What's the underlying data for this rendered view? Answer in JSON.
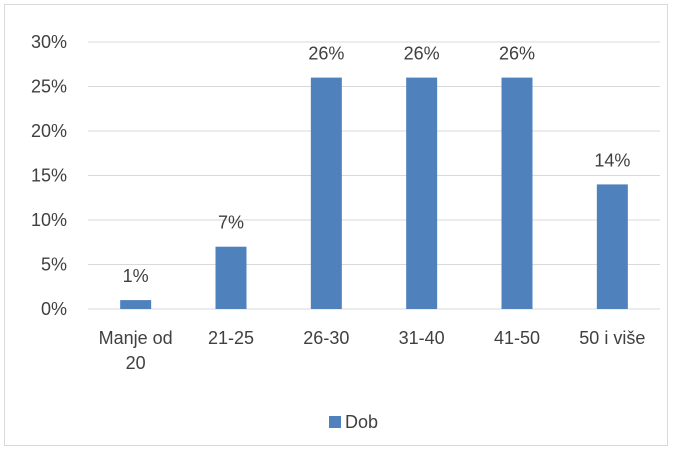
{
  "chart_data": {
    "type": "bar",
    "title": "",
    "xlabel": "",
    "ylabel": "",
    "categories": [
      [
        "Manje od",
        "20"
      ],
      [
        "21-25"
      ],
      [
        "26-30"
      ],
      [
        "31-40"
      ],
      [
        "41-50"
      ],
      [
        "50 i više"
      ]
    ],
    "series": [
      {
        "name": "Dob",
        "values": [
          1,
          7,
          26,
          26,
          26,
          14
        ],
        "color": "#4f81bd"
      }
    ],
    "data_labels": [
      "1%",
      "7%",
      "26%",
      "26%",
      "26%",
      "14%"
    ],
    "y_ticks": [
      "0%",
      "5%",
      "10%",
      "15%",
      "20%",
      "25%",
      "30%"
    ],
    "y_tick_values": [
      0,
      5,
      10,
      15,
      20,
      25,
      30
    ],
    "ylim": [
      0,
      30
    ],
    "grid": true,
    "legend_position": "bottom"
  }
}
